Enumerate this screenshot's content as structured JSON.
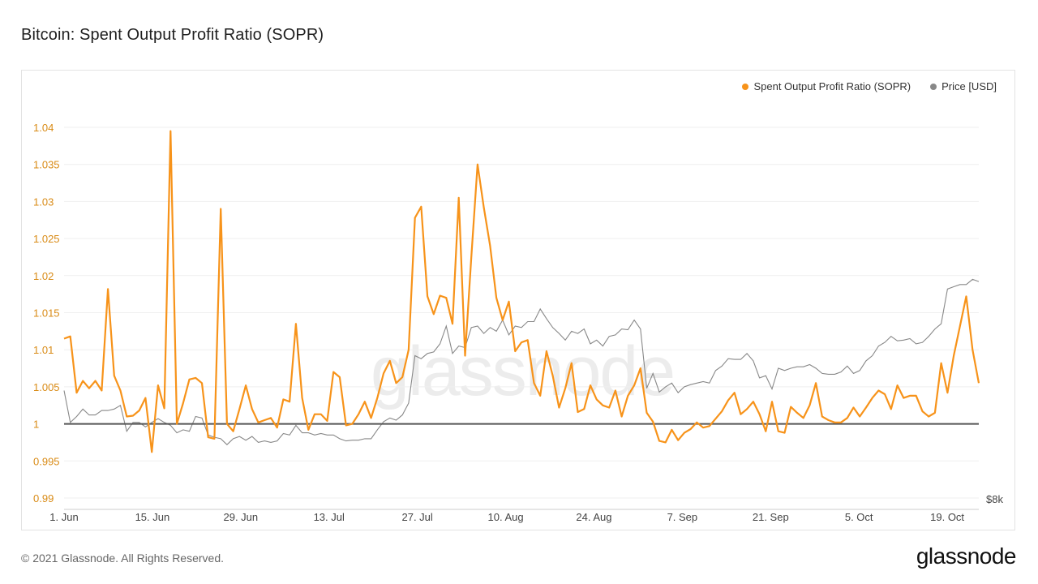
{
  "header": {
    "title": "Bitcoin: Spent Output Profit Ratio (SOPR)"
  },
  "legend": [
    {
      "label": "Spent Output Profit Ratio (SOPR)",
      "color": "#f7931a"
    },
    {
      "label": "Price [USD]",
      "color": "#888888"
    }
  ],
  "watermark": "glassnode",
  "footer": {
    "copyright": "© 2021 Glassnode. All Rights Reserved.",
    "brand": "glassnode"
  },
  "chart_data": {
    "type": "line",
    "title": "Bitcoin: Spent Output Profit Ratio (SOPR)",
    "xlabel": "",
    "ylabel": "",
    "x_tick_labels": [
      "1. Jun",
      "15. Jun",
      "29. Jun",
      "13. Jul",
      "27. Jul",
      "10. Aug",
      "24. Aug",
      "7. Sep",
      "21. Sep",
      "5. Oct",
      "19. Oct"
    ],
    "x_tick_days": [
      0,
      14,
      28,
      42,
      56,
      70,
      84,
      98,
      112,
      126,
      140
    ],
    "x_range_days": [
      0,
      145
    ],
    "ylim": [
      0.99,
      1.04
    ],
    "y_ticks": [
      0.99,
      0.995,
      1,
      1.005,
      1.01,
      1.015,
      1.02,
      1.025,
      1.03,
      1.035,
      1.04
    ],
    "y_tick_labels": [
      "0.99",
      "0.995",
      "1",
      "1.005",
      "1.01",
      "1.015",
      "1.02",
      "1.025",
      "1.03",
      "1.035",
      "1.04"
    ],
    "right_axis_label": "$8k",
    "reference_line": 1,
    "grid": true,
    "legend_position": "top-right",
    "series": [
      {
        "name": "Spent Output Profit Ratio (SOPR)",
        "color": "#f7931a",
        "values": [
          1.0115,
          1.0118,
          1.0042,
          1.0058,
          1.0048,
          1.0058,
          1.0045,
          1.0182,
          1.0065,
          1.0045,
          1.001,
          1.0011,
          1.0018,
          1.0035,
          0.9962,
          1.0052,
          1.0021,
          1.0395,
          1.0,
          1.0028,
          1.006,
          1.0062,
          1.0055,
          0.9982,
          0.998,
          1.029,
          1.0,
          0.999,
          1.002,
          1.0052,
          1.002,
          1.0002,
          1.0005,
          1.0008,
          0.9995,
          1.0033,
          1.003,
          1.0135,
          1.0035,
          0.9992,
          1.0013,
          1.0013,
          1.0004,
          1.007,
          1.0063,
          0.9998,
          1.0,
          1.0013,
          1.003,
          1.0008,
          1.0035,
          1.0068,
          1.0085,
          1.0055,
          1.0063,
          1.01,
          1.0278,
          1.0293,
          1.0172,
          1.0148,
          1.0173,
          1.017,
          1.0135,
          1.0305,
          1.0092,
          1.0225,
          1.035,
          1.0292,
          1.024,
          1.017,
          1.014,
          1.0165,
          1.0098,
          1.011,
          1.0113,
          1.0055,
          1.0038,
          1.0098,
          1.0065,
          1.0022,
          1.0048,
          1.0082,
          1.0016,
          1.002,
          1.0052,
          1.0033,
          1.0025,
          1.0022,
          1.0045,
          1.001,
          1.0038,
          1.0052,
          1.0075,
          1.0015,
          1.0003,
          0.9977,
          0.9975,
          0.9992,
          0.9978,
          0.9988,
          0.9993,
          1.0002,
          0.9995,
          0.9997,
          1.0007,
          1.0017,
          1.0032,
          1.0042,
          1.0013,
          1.002,
          1.003,
          1.0013,
          0.999,
          1.003,
          0.999,
          0.9988,
          1.0023,
          1.0015,
          1.0008,
          1.0025,
          1.0055,
          1.001,
          1.0005,
          1.0002,
          1.0002,
          1.0008,
          1.0022,
          1.001,
          1.0022,
          1.0035,
          1.0045,
          1.004,
          1.002,
          1.0052,
          1.0035,
          1.0038,
          1.0038,
          1.0017,
          1.001,
          1.0015,
          1.0082,
          1.0042,
          1.0092,
          1.0132,
          1.0172,
          1.01,
          1.0055
        ]
      },
      {
        "name": "Price [USD]",
        "color": "#888888",
        "scale": "right",
        "values_in_left_axis_units": [
          1.0045,
          1.0002,
          1.001,
          1.002,
          1.0012,
          1.0012,
          1.0018,
          1.0018,
          1.002,
          1.0025,
          0.999,
          1.0002,
          1.0002,
          0.9996,
          1.0002,
          1.0007,
          1.0002,
          0.9998,
          0.9988,
          0.9992,
          0.999,
          1.001,
          1.0008,
          0.9985,
          0.9982,
          0.998,
          0.9972,
          0.998,
          0.9983,
          0.9978,
          0.9983,
          0.9975,
          0.9977,
          0.9975,
          0.9977,
          0.9987,
          0.9985,
          0.9998,
          0.9988,
          0.9988,
          0.9985,
          0.9987,
          0.9985,
          0.9985,
          0.998,
          0.9977,
          0.9978,
          0.9978,
          0.998,
          0.998,
          0.9992,
          1.0003,
          1.0008,
          1.0005,
          1.0012,
          1.0028,
          1.0092,
          1.0088,
          1.0095,
          1.0097,
          1.0108,
          1.0132,
          1.0095,
          1.0105,
          1.0103,
          1.013,
          1.0132,
          1.0122,
          1.013,
          1.0125,
          1.014,
          1.012,
          1.0132,
          1.013,
          1.0138,
          1.0138,
          1.0155,
          1.0142,
          1.013,
          1.0122,
          1.0113,
          1.0125,
          1.0122,
          1.0128,
          1.0108,
          1.0113,
          1.0105,
          1.0118,
          1.012,
          1.0128,
          1.0127,
          1.014,
          1.0128,
          1.0048,
          1.0068,
          1.0043,
          1.005,
          1.0055,
          1.0042,
          1.005,
          1.0053,
          1.0055,
          1.0057,
          1.0055,
          1.0072,
          1.0078,
          1.0088,
          1.0087,
          1.0087,
          1.0095,
          1.0085,
          1.0062,
          1.0065,
          1.0047,
          1.0075,
          1.0072,
          1.0075,
          1.0077,
          1.0077,
          1.008,
          1.0075,
          1.0068,
          1.0067,
          1.0067,
          1.007,
          1.0078,
          1.0068,
          1.0072,
          1.0085,
          1.0092,
          1.0105,
          1.011,
          1.0118,
          1.0112,
          1.0113,
          1.0115,
          1.0108,
          1.011,
          1.0118,
          1.0128,
          1.0135,
          1.0182,
          1.0185,
          1.0188,
          1.0188,
          1.0195,
          1.0192
        ]
      }
    ]
  }
}
